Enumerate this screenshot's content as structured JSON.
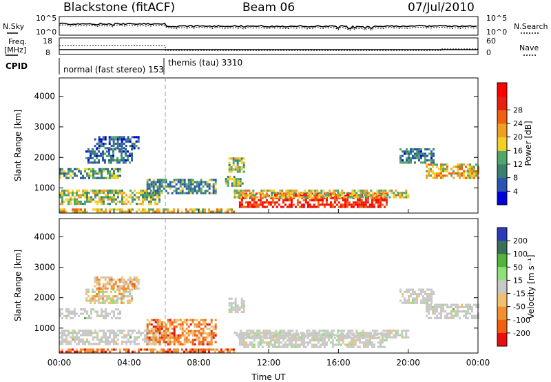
{
  "header": {
    "station": "Blackstone (fitACF)",
    "beam": "Beam 06",
    "date": "07/Jul/2010"
  },
  "summary": {
    "nsky_label": "N.Sky",
    "nsearch_label": "N.Search",
    "freq_label_1": "Freq.",
    "freq_label_2": "[MHz]",
    "nave_label": "Nave",
    "cpid_label": "CPID",
    "nsky_ticks": [
      "10^5",
      "10^0"
    ],
    "nsearch_ticks": [
      "10^5",
      "10^0"
    ],
    "freq_ticks": [
      "18",
      "8"
    ],
    "nave_ticks": [
      "60",
      "0"
    ],
    "cpid_modes": [
      {
        "label": "normal (fast stereo) 153",
        "start_hour": 0,
        "end_hour": 6
      },
      {
        "label": "themis (tau) 3310",
        "start_hour": 6,
        "end_hour": 24
      }
    ]
  },
  "colors": {
    "power_scale": [
      "#0000dd",
      "#2c52b4",
      "#3b7f6e",
      "#4fa76a",
      "#f2d028",
      "#f0a020",
      "#f06010",
      "#e82010",
      "#ff0000"
    ],
    "velocity_scale": [
      "#2a3ab8",
      "#3c6f5a",
      "#52b43a",
      "#8ee07a",
      "#c8c8c8",
      "#f0c070",
      "#f09030",
      "#f06010",
      "#e81010"
    ]
  },
  "chart_data": [
    {
      "type": "heatmap",
      "name": "power",
      "ylabel": "Slant Range [km]",
      "xlabel": "",
      "ylim": [
        180,
        4600
      ],
      "y_ticks": [
        "1000",
        "2000",
        "3000",
        "4000"
      ],
      "x_ticks": [
        "00:00",
        "04:00",
        "08:00",
        "12:00",
        "16:00",
        "20:00",
        "00:00"
      ],
      "xlim_hours": [
        0,
        24
      ],
      "colorbar_label": "Power [dB]",
      "colorbar_ticks": [
        "4",
        "8",
        "12",
        "16",
        "20",
        "24",
        "28"
      ],
      "grid": false,
      "regions": [
        {
          "t0": 0.0,
          "t1": 5.8,
          "r0": 500,
          "r1": 950,
          "level": 0.45
        },
        {
          "t0": 0.0,
          "t1": 3.5,
          "r0": 1350,
          "r1": 1650,
          "level": 0.35
        },
        {
          "t0": 1.5,
          "t1": 4.2,
          "r0": 1800,
          "r1": 2300,
          "level": 0.25
        },
        {
          "t0": 2.0,
          "t1": 4.5,
          "r0": 2300,
          "r1": 2700,
          "level": 0.2
        },
        {
          "t0": 0.0,
          "t1": 10.0,
          "r0": 200,
          "r1": 330,
          "level": 0.55
        },
        {
          "t0": 5.0,
          "t1": 9.0,
          "r0": 800,
          "r1": 1300,
          "level": 0.3
        },
        {
          "t0": 9.5,
          "t1": 10.5,
          "r0": 1100,
          "r1": 1400,
          "level": 0.4
        },
        {
          "t0": 9.7,
          "t1": 10.6,
          "r0": 1500,
          "r1": 2000,
          "level": 0.45
        },
        {
          "t0": 10.3,
          "t1": 18.8,
          "r0": 400,
          "r1": 850,
          "level": 0.85
        },
        {
          "t0": 10.0,
          "t1": 20.0,
          "r0": 700,
          "r1": 950,
          "level": 0.5
        },
        {
          "t0": 19.5,
          "t1": 21.5,
          "r0": 1800,
          "r1": 2300,
          "level": 0.25
        },
        {
          "t0": 21.0,
          "t1": 24.0,
          "r0": 1300,
          "r1": 1800,
          "level": 0.55
        }
      ]
    },
    {
      "type": "heatmap",
      "name": "velocity",
      "ylabel": "Slant Range [km]",
      "xlabel": "Time UT",
      "ylim": [
        180,
        4600
      ],
      "y_ticks": [
        "1000",
        "2000",
        "3000",
        "4000"
      ],
      "x_ticks": [
        "00:00",
        "04:00",
        "08:00",
        "12:00",
        "16:00",
        "20:00",
        "00:00"
      ],
      "xlim_hours": [
        0,
        24
      ],
      "colorbar_label": "Velocity [m s⁻¹]",
      "colorbar_ticks": [
        "200",
        "100",
        "50",
        "15",
        "-15",
        "-50",
        "-100",
        "-200"
      ],
      "grid": false,
      "regions": [
        {
          "t0": 0.0,
          "t1": 5.8,
          "r0": 500,
          "r1": 950,
          "level": 0.5
        },
        {
          "t0": 0.0,
          "t1": 3.5,
          "r0": 1350,
          "r1": 1650,
          "level": 0.5
        },
        {
          "t0": 1.5,
          "t1": 4.2,
          "r0": 1800,
          "r1": 2300,
          "level": 0.55
        },
        {
          "t0": 2.0,
          "t1": 4.5,
          "r0": 2300,
          "r1": 2700,
          "level": 0.65
        },
        {
          "t0": 0.0,
          "t1": 10.0,
          "r0": 200,
          "r1": 330,
          "level": 0.8
        },
        {
          "t0": 5.0,
          "t1": 9.0,
          "r0": 500,
          "r1": 1300,
          "level": 0.75
        },
        {
          "t0": 9.7,
          "t1": 10.6,
          "r0": 1500,
          "r1": 2000,
          "level": 0.5
        },
        {
          "t0": 10.3,
          "t1": 18.8,
          "r0": 400,
          "r1": 850,
          "level": 0.5
        },
        {
          "t0": 10.0,
          "t1": 20.0,
          "r0": 700,
          "r1": 950,
          "level": 0.5
        },
        {
          "t0": 19.5,
          "t1": 21.5,
          "r0": 1800,
          "r1": 2300,
          "level": 0.5
        },
        {
          "t0": 21.0,
          "t1": 24.0,
          "r0": 1300,
          "r1": 1800,
          "level": 0.5
        }
      ]
    }
  ]
}
